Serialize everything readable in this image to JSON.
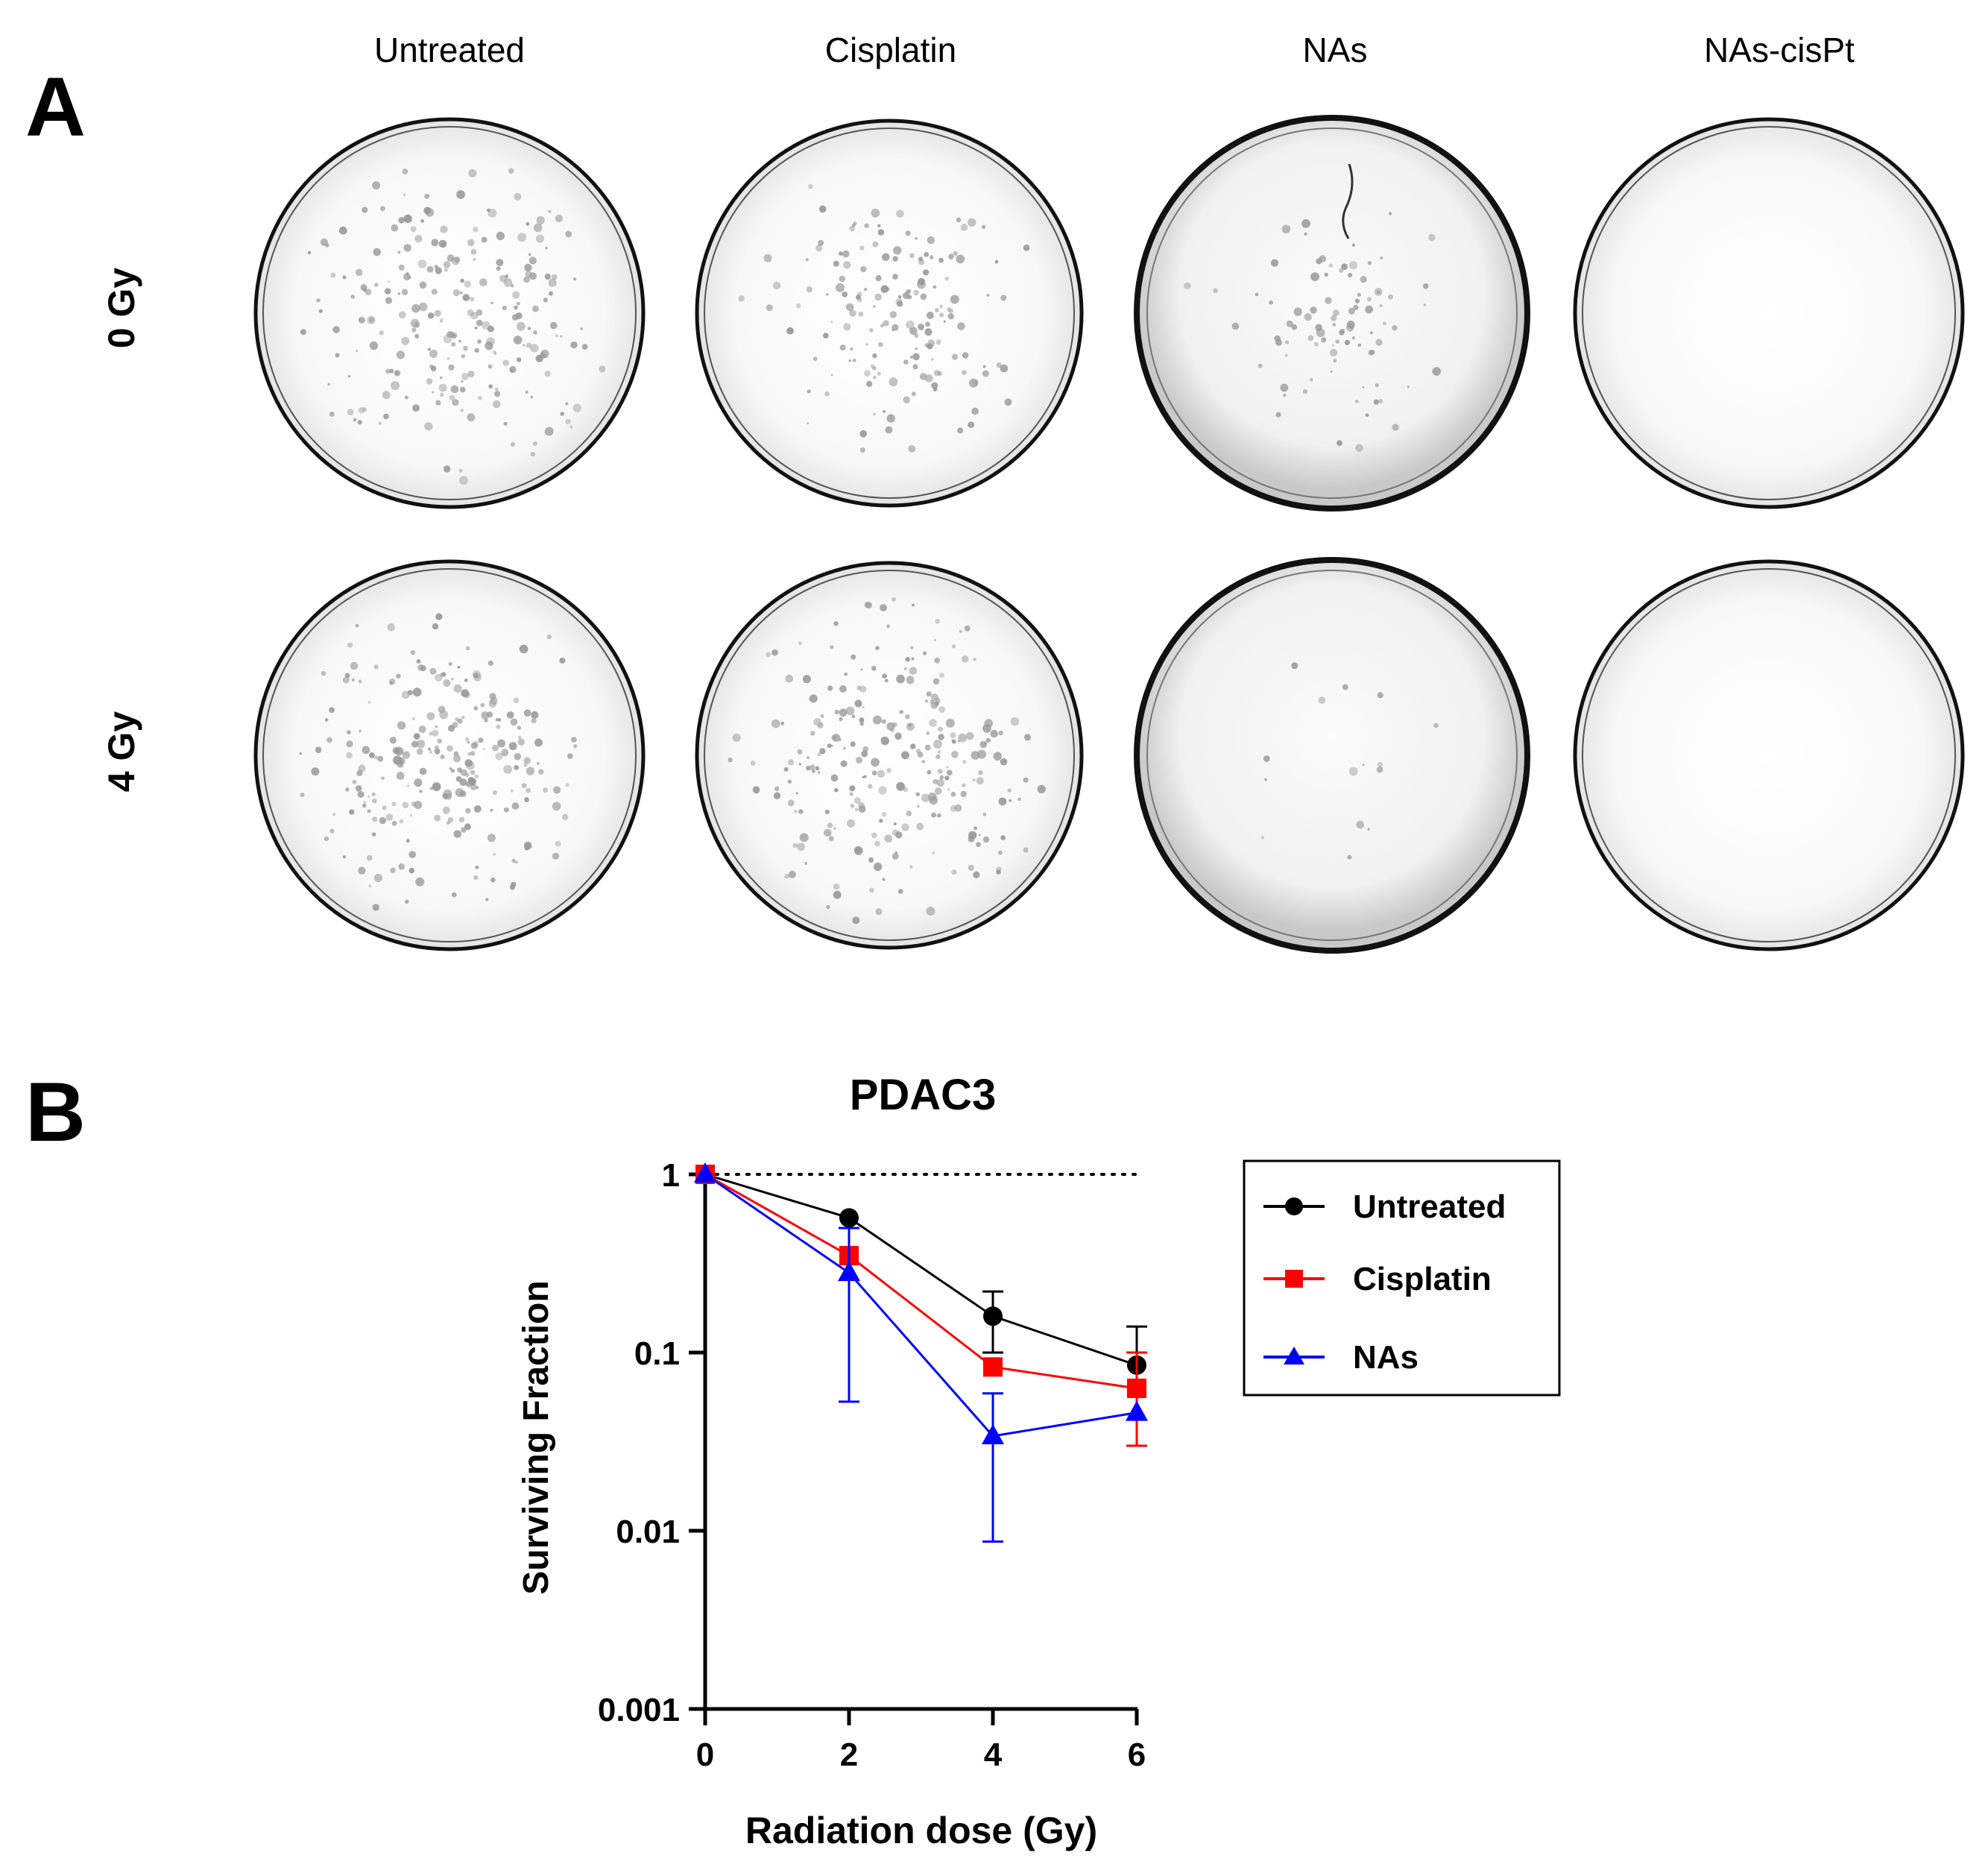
{
  "panel_a": {
    "letter": "A",
    "columns": [
      "Untreated",
      "Cisplatin",
      "NAs",
      "NAs-cisPt"
    ],
    "rows": [
      "0 Gy",
      "4 Gy"
    ]
  },
  "panel_b": {
    "letter": "B"
  },
  "chart_data": {
    "type": "line",
    "title": "PDAC3",
    "xlabel": "Radiation dose (Gy)",
    "ylabel": "Surviving Fraction",
    "x_scale": "linear",
    "y_scale": "log",
    "xlim": [
      0,
      6
    ],
    "ylim": [
      0.001,
      1
    ],
    "x_ticks": [
      0,
      2,
      4,
      6
    ],
    "x_tick_labels": [
      "0",
      "2",
      "4",
      "6"
    ],
    "y_ticks": [
      0.001,
      0.01,
      0.1,
      1
    ],
    "y_tick_labels": [
      "0.001",
      "0.01",
      "0.1",
      "1"
    ],
    "reference_line": {
      "y": 1,
      "style": "dotted"
    },
    "legend_position": "right",
    "x": [
      0,
      2,
      4,
      6
    ],
    "series": [
      {
        "name": "Untreated",
        "color": "#000000",
        "marker": "circle",
        "values": [
          1,
          0.57,
          0.16,
          0.085
        ],
        "error": [
          null,
          null,
          [
            0.1,
            0.22
          ],
          [
            0.03,
            0.14
          ]
        ]
      },
      {
        "name": "Cisplatin",
        "color": "#ff0000",
        "marker": "square",
        "values": [
          1,
          0.35,
          0.083,
          0.063
        ],
        "error": [
          null,
          null,
          null,
          [
            0.03,
            0.1
          ]
        ]
      },
      {
        "name": "NAs",
        "color": "#0000ff",
        "marker": "triangle",
        "values": [
          1,
          0.28,
          0.034,
          0.046
        ],
        "error": [
          null,
          [
            0.053,
            0.5
          ],
          [
            0.0087,
            0.059
          ],
          null
        ]
      }
    ]
  }
}
